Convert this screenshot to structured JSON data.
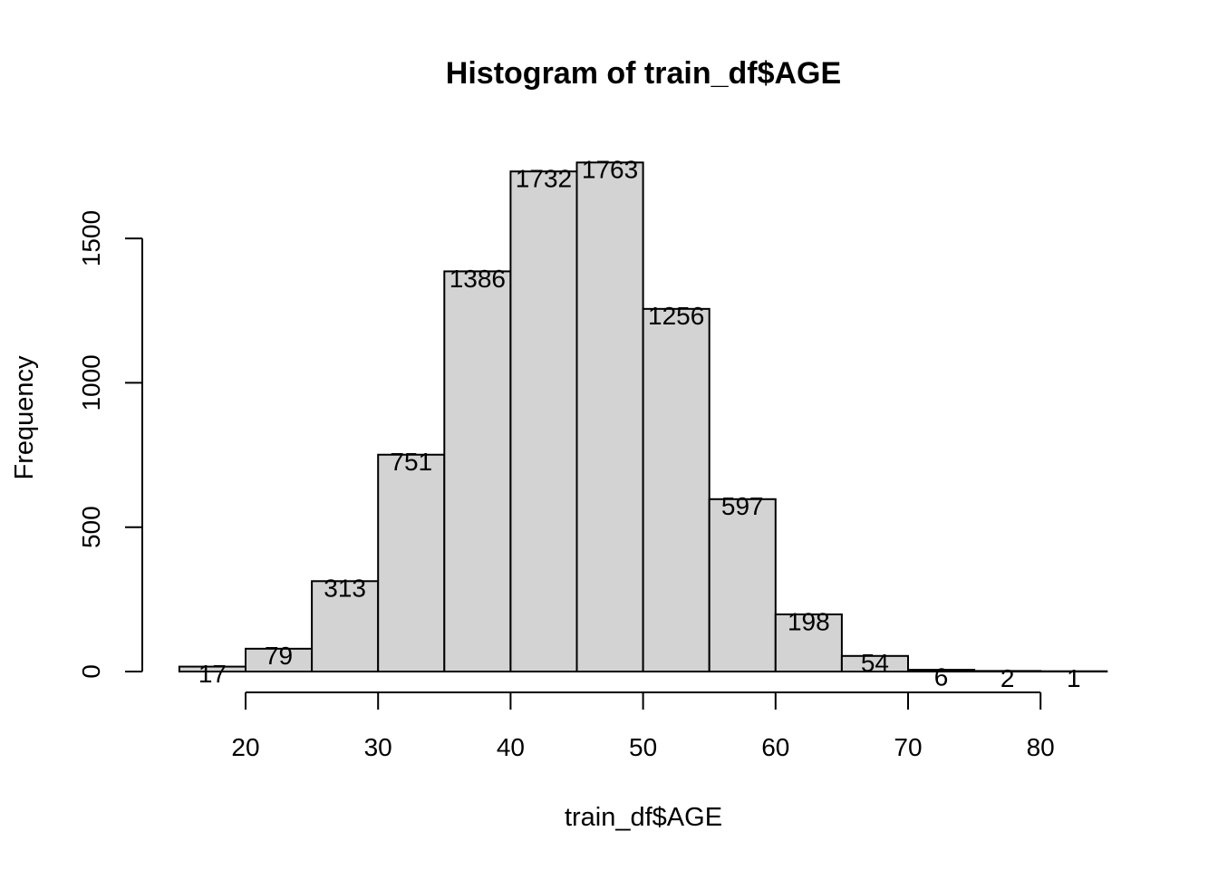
{
  "chart_data": {
    "type": "bar",
    "title": "Histogram of train_df$AGE",
    "xlabel": "train_df$AGE",
    "ylabel": "Frequency",
    "bins": [
      {
        "start": 15,
        "end": 20,
        "count": 17
      },
      {
        "start": 20,
        "end": 25,
        "count": 79
      },
      {
        "start": 25,
        "end": 30,
        "count": 313
      },
      {
        "start": 30,
        "end": 35,
        "count": 751
      },
      {
        "start": 35,
        "end": 40,
        "count": 1386
      },
      {
        "start": 40,
        "end": 45,
        "count": 1732
      },
      {
        "start": 45,
        "end": 50,
        "count": 1763
      },
      {
        "start": 50,
        "end": 55,
        "count": 1256
      },
      {
        "start": 55,
        "end": 60,
        "count": 597
      },
      {
        "start": 60,
        "end": 65,
        "count": 198
      },
      {
        "start": 65,
        "end": 70,
        "count": 54
      },
      {
        "start": 70,
        "end": 75,
        "count": 6
      },
      {
        "start": 75,
        "end": 80,
        "count": 2
      },
      {
        "start": 80,
        "end": 85,
        "count": 1
      }
    ],
    "xticks": [
      20,
      30,
      40,
      50,
      60,
      70,
      80
    ],
    "yticks": [
      0,
      500,
      1000,
      1500
    ],
    "xlim": [
      15,
      85
    ],
    "ylim": [
      0,
      1763
    ],
    "grid": false,
    "bar_color": "#d3d3d3",
    "edge_color": "#000000"
  }
}
